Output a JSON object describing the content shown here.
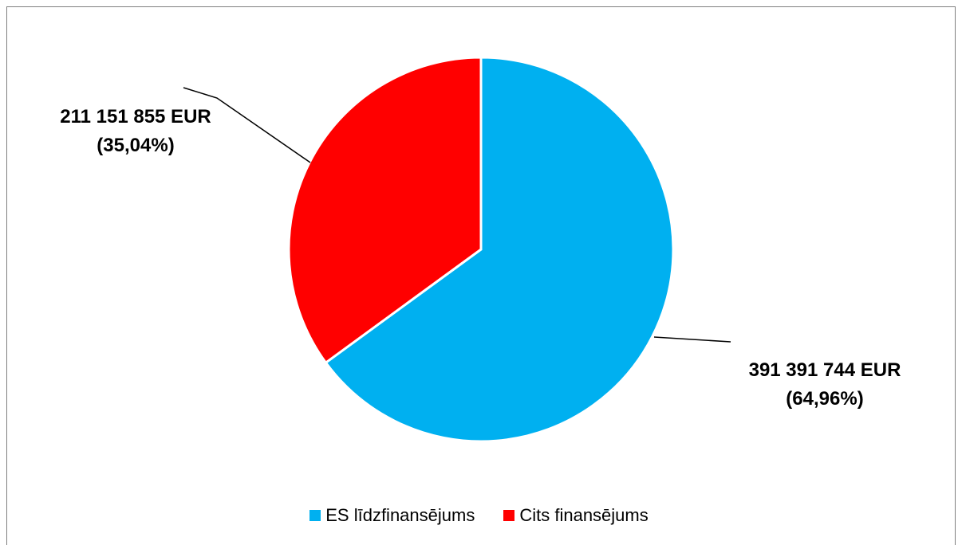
{
  "chart_data": {
    "type": "pie",
    "series": [
      {
        "name": "ES līdzfinansējums",
        "value": 391391744,
        "percent": 64.96,
        "color": "#00b0f0",
        "label_value": "391 391 744 EUR",
        "label_percent": "(64,96%)"
      },
      {
        "name": "Cits finansējums",
        "value": 211151855,
        "percent": 35.04,
        "color": "#ff0000",
        "label_value": "211 151 855 EUR",
        "label_percent": "(35,04%)"
      }
    ],
    "start_angle": "12 o'clock, clockwise",
    "legend_position": "bottom"
  }
}
